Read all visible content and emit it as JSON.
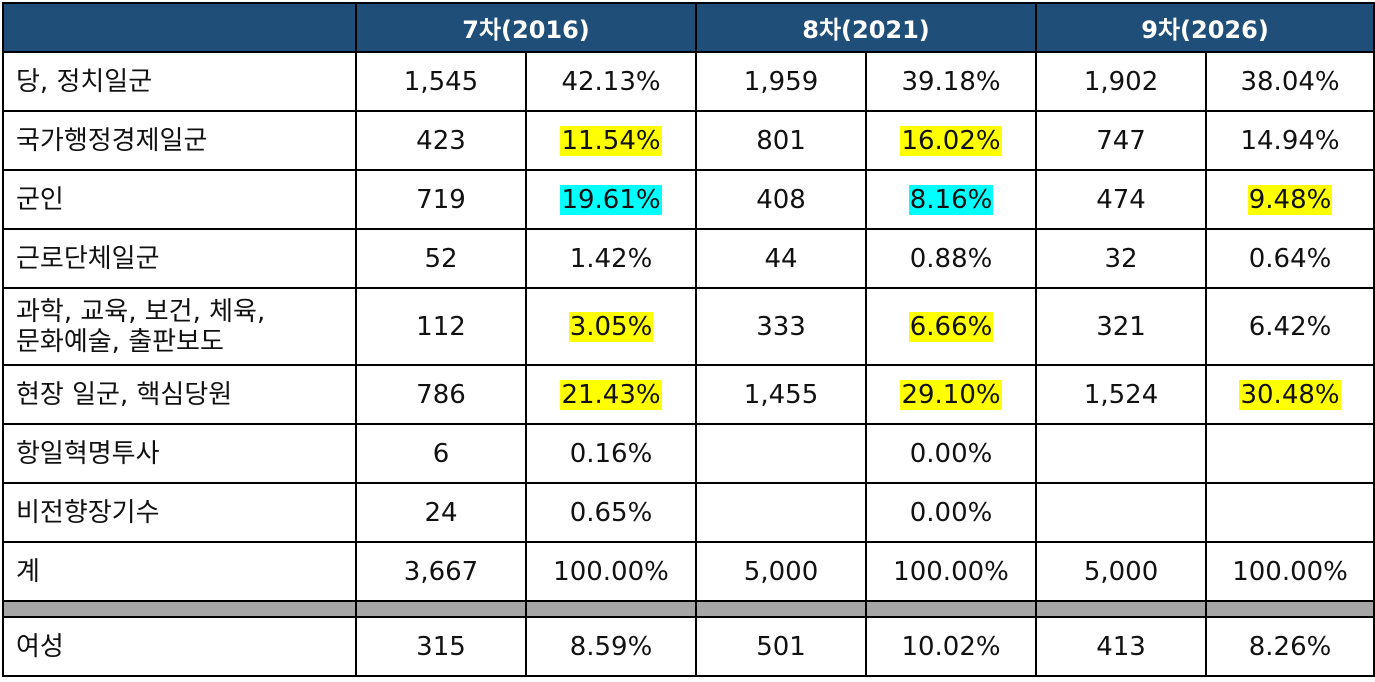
{
  "header": {
    "corner": "",
    "periods": [
      "7차(2016)",
      "8차(2021)",
      "9차(2026)"
    ]
  },
  "highlight_colors": {
    "yellow": "#ffff00",
    "cyan": "#00ffff",
    "header_bg": "#1f4e79",
    "separator": "#a6a6a6"
  },
  "rows": [
    {
      "label": "당, 정치일군",
      "c7": "1,545",
      "p7": "42.13%",
      "c8": "1,959",
      "p8": "39.18%",
      "c9": "1,902",
      "p9": "38.04%"
    },
    {
      "label": "국가행정경제일군",
      "c7": "423",
      "p7": "11.54%",
      "c8": "801",
      "p8": "16.02%",
      "c9": "747",
      "p9": "14.94%"
    },
    {
      "label": "군인",
      "c7": "719",
      "p7": "19.61%",
      "c8": "408",
      "p8": "8.16%",
      "c9": "474",
      "p9": "9.48%"
    },
    {
      "label": "근로단체일군",
      "c7": "52",
      "p7": "1.42%",
      "c8": "44",
      "p8": "0.88%",
      "c9": "32",
      "p9": "0.64%"
    },
    {
      "label_line1": "과학, 교육, 보건, 체육,",
      "label_line2": "문화예술, 출판보도",
      "c7": "112",
      "p7": "3.05%",
      "c8": "333",
      "p8": "6.66%",
      "c9": "321",
      "p9": "6.42%"
    },
    {
      "label": "현장 일군, 핵심당원",
      "c7": "786",
      "p7": "21.43%",
      "c8": "1,455",
      "p8": "29.10%",
      "c9": "1,524",
      "p9": "30.48%"
    },
    {
      "label": "항일혁명투사",
      "c7": "6",
      "p7": "0.16%",
      "c8": "",
      "p8": "0.00%",
      "c9": "",
      "p9": ""
    },
    {
      "label": "비전향장기수",
      "c7": "24",
      "p7": "0.65%",
      "c8": "",
      "p8": "0.00%",
      "c9": "",
      "p9": ""
    },
    {
      "label": "계",
      "c7": "3,667",
      "p7": "100.00%",
      "c8": "5,000",
      "p8": "100.00%",
      "c9": "5,000",
      "p9": "100.00%"
    }
  ],
  "female": {
    "label": "여성",
    "c7": "315",
    "p7": "8.59%",
    "c8": "501",
    "p8": "10.02%",
    "c9": "413",
    "p9": "8.26%"
  }
}
